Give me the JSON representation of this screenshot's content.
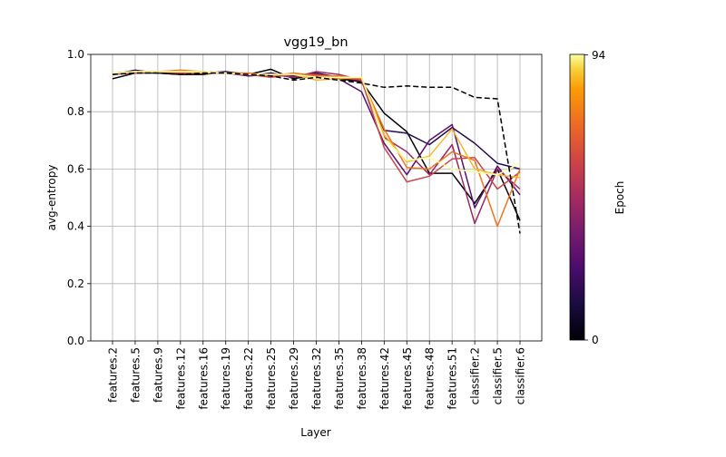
{
  "chart_data": {
    "type": "line",
    "title": "vgg19_bn",
    "xlabel": "Layer",
    "ylabel": "avg-entropy",
    "ylim": [
      0.0,
      1.0
    ],
    "yticks": [
      "0.0",
      "0.2",
      "0.4",
      "0.6",
      "0.8",
      "1.0"
    ],
    "grid": true,
    "categories": [
      "features.2",
      "features.5",
      "features.9",
      "features.12",
      "features.16",
      "features.19",
      "features.22",
      "features.25",
      "features.29",
      "features.32",
      "features.35",
      "features.38",
      "features.42",
      "features.45",
      "features.48",
      "features.51",
      "classifier.2",
      "classifier.5",
      "classifier.6"
    ],
    "colorbar": {
      "label": "Epoch",
      "min_label": "0",
      "max_label": "94",
      "colormap": "inferno"
    },
    "series": [
      {
        "epoch_fraction": 0.0,
        "color": "#000004",
        "style": "solid",
        "values": [
          0.915,
          0.935,
          0.935,
          0.93,
          0.93,
          0.94,
          0.93,
          0.948,
          0.915,
          0.93,
          0.915,
          0.905,
          0.795,
          0.73,
          0.585,
          0.585,
          0.48,
          0.6,
          0.42
        ]
      },
      {
        "epoch_fraction": 0.15,
        "color": "#260c51",
        "style": "solid",
        "values": [
          0.93,
          0.945,
          0.935,
          0.94,
          0.935,
          0.94,
          0.925,
          0.935,
          0.92,
          0.935,
          0.92,
          0.905,
          0.735,
          0.725,
          0.685,
          0.745,
          0.69,
          0.62,
          0.6
        ]
      },
      {
        "epoch_fraction": 0.3,
        "color": "#58106e",
        "style": "solid",
        "values": [
          0.935,
          0.94,
          0.94,
          0.935,
          0.935,
          0.935,
          0.925,
          0.93,
          0.925,
          0.93,
          0.915,
          0.87,
          0.69,
          0.58,
          0.7,
          0.755,
          0.465,
          0.61,
          0.51
        ]
      },
      {
        "epoch_fraction": 0.45,
        "color": "#9a2865",
        "style": "solid",
        "values": [
          0.935,
          0.94,
          0.94,
          0.94,
          0.94,
          0.935,
          0.93,
          0.93,
          0.92,
          0.94,
          0.93,
          0.91,
          0.71,
          0.66,
          0.58,
          0.685,
          0.41,
          0.6,
          0.53
        ]
      },
      {
        "epoch_fraction": 0.6,
        "color": "#cb4649",
        "style": "solid",
        "values": [
          0.93,
          0.935,
          0.94,
          0.935,
          0.935,
          0.935,
          0.93,
          0.92,
          0.93,
          0.93,
          0.92,
          0.91,
          0.675,
          0.555,
          0.575,
          0.635,
          0.64,
          0.53,
          0.59
        ]
      },
      {
        "epoch_fraction": 0.75,
        "color": "#f1731d",
        "style": "solid",
        "values": [
          0.935,
          0.94,
          0.94,
          0.945,
          0.94,
          0.935,
          0.935,
          0.925,
          0.935,
          0.925,
          0.925,
          0.915,
          0.74,
          0.605,
          0.6,
          0.66,
          0.63,
          0.4,
          0.6
        ]
      },
      {
        "epoch_fraction": 0.88,
        "color": "#f9b52a",
        "style": "solid",
        "values": [
          0.935,
          0.94,
          0.94,
          0.94,
          0.935,
          0.935,
          0.93,
          0.93,
          0.93,
          0.91,
          0.915,
          0.92,
          0.72,
          0.625,
          0.645,
          0.74,
          0.6,
          0.58,
          0.57
        ]
      },
      {
        "epoch_fraction": 1.0,
        "color": "#fcffa4",
        "style": "solid",
        "values": [
          0.935,
          0.94,
          0.94,
          0.94,
          0.94,
          0.935,
          0.93,
          0.93,
          0.93,
          0.92,
          0.92,
          0.92,
          0.705,
          0.63,
          0.64,
          0.6,
          0.59,
          0.58,
          0.62
        ]
      },
      {
        "color": "#000000",
        "style": "dashed",
        "values": [
          0.93,
          0.935,
          0.935,
          0.93,
          0.935,
          0.935,
          0.93,
          0.925,
          0.91,
          0.92,
          0.91,
          0.9,
          0.885,
          0.89,
          0.885,
          0.885,
          0.85,
          0.845,
          0.375
        ]
      }
    ]
  }
}
